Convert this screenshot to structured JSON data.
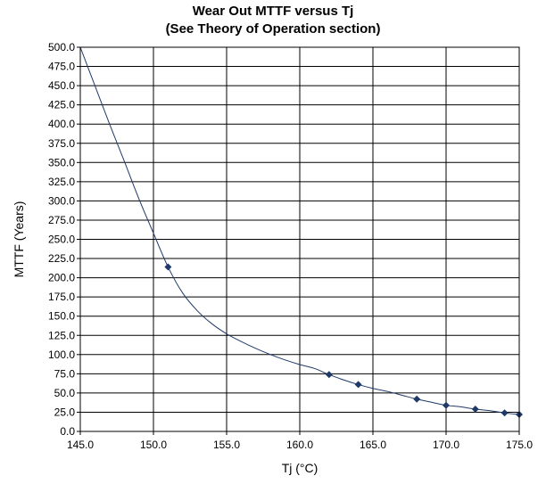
{
  "chart_data": {
    "type": "line",
    "title": "Wear Out MTTF versus Tj",
    "subtitle": "(See Theory of Operation section)",
    "xlabel": "Tj (°C)",
    "ylabel": "MTTF (Years)",
    "xlim": [
      145,
      175
    ],
    "ylim": [
      0,
      500
    ],
    "x_ticks": [
      "145.0",
      "150.0",
      "155.0",
      "160.0",
      "165.0",
      "170.0",
      "175.0"
    ],
    "y_ticks": [
      "0.0",
      "25.0",
      "50.0",
      "75.0",
      "100.0",
      "125.0",
      "150.0",
      "175.0",
      "200.0",
      "225.0",
      "250.0",
      "275.0",
      "300.0",
      "325.0",
      "350.0",
      "375.0",
      "400.0",
      "425.0",
      "450.0",
      "475.0",
      "500.0"
    ],
    "grid": true,
    "legend": "none",
    "markers": {
      "x": [
        151,
        162,
        164,
        168,
        170,
        172,
        174,
        175
      ],
      "y": [
        214,
        74,
        61,
        42,
        34,
        29,
        24,
        22
      ]
    },
    "curve": {
      "x": [
        145,
        146,
        147,
        148,
        149,
        150,
        151,
        152,
        153,
        154,
        155,
        156,
        157,
        158,
        159,
        160,
        161,
        162,
        163,
        164,
        165,
        166,
        167,
        168,
        169,
        170,
        171,
        172,
        173,
        174,
        175
      ],
      "y": [
        500,
        450,
        400,
        352,
        303,
        258,
        214,
        180,
        157,
        140,
        127,
        117,
        108,
        100,
        93,
        87,
        82,
        74,
        67,
        61,
        56,
        52,
        47,
        42,
        38,
        34,
        32,
        29,
        27,
        24,
        22
      ]
    },
    "colors": {
      "line": "#1f3a68",
      "marker": "#1f3a68",
      "grid": "#000000"
    }
  }
}
